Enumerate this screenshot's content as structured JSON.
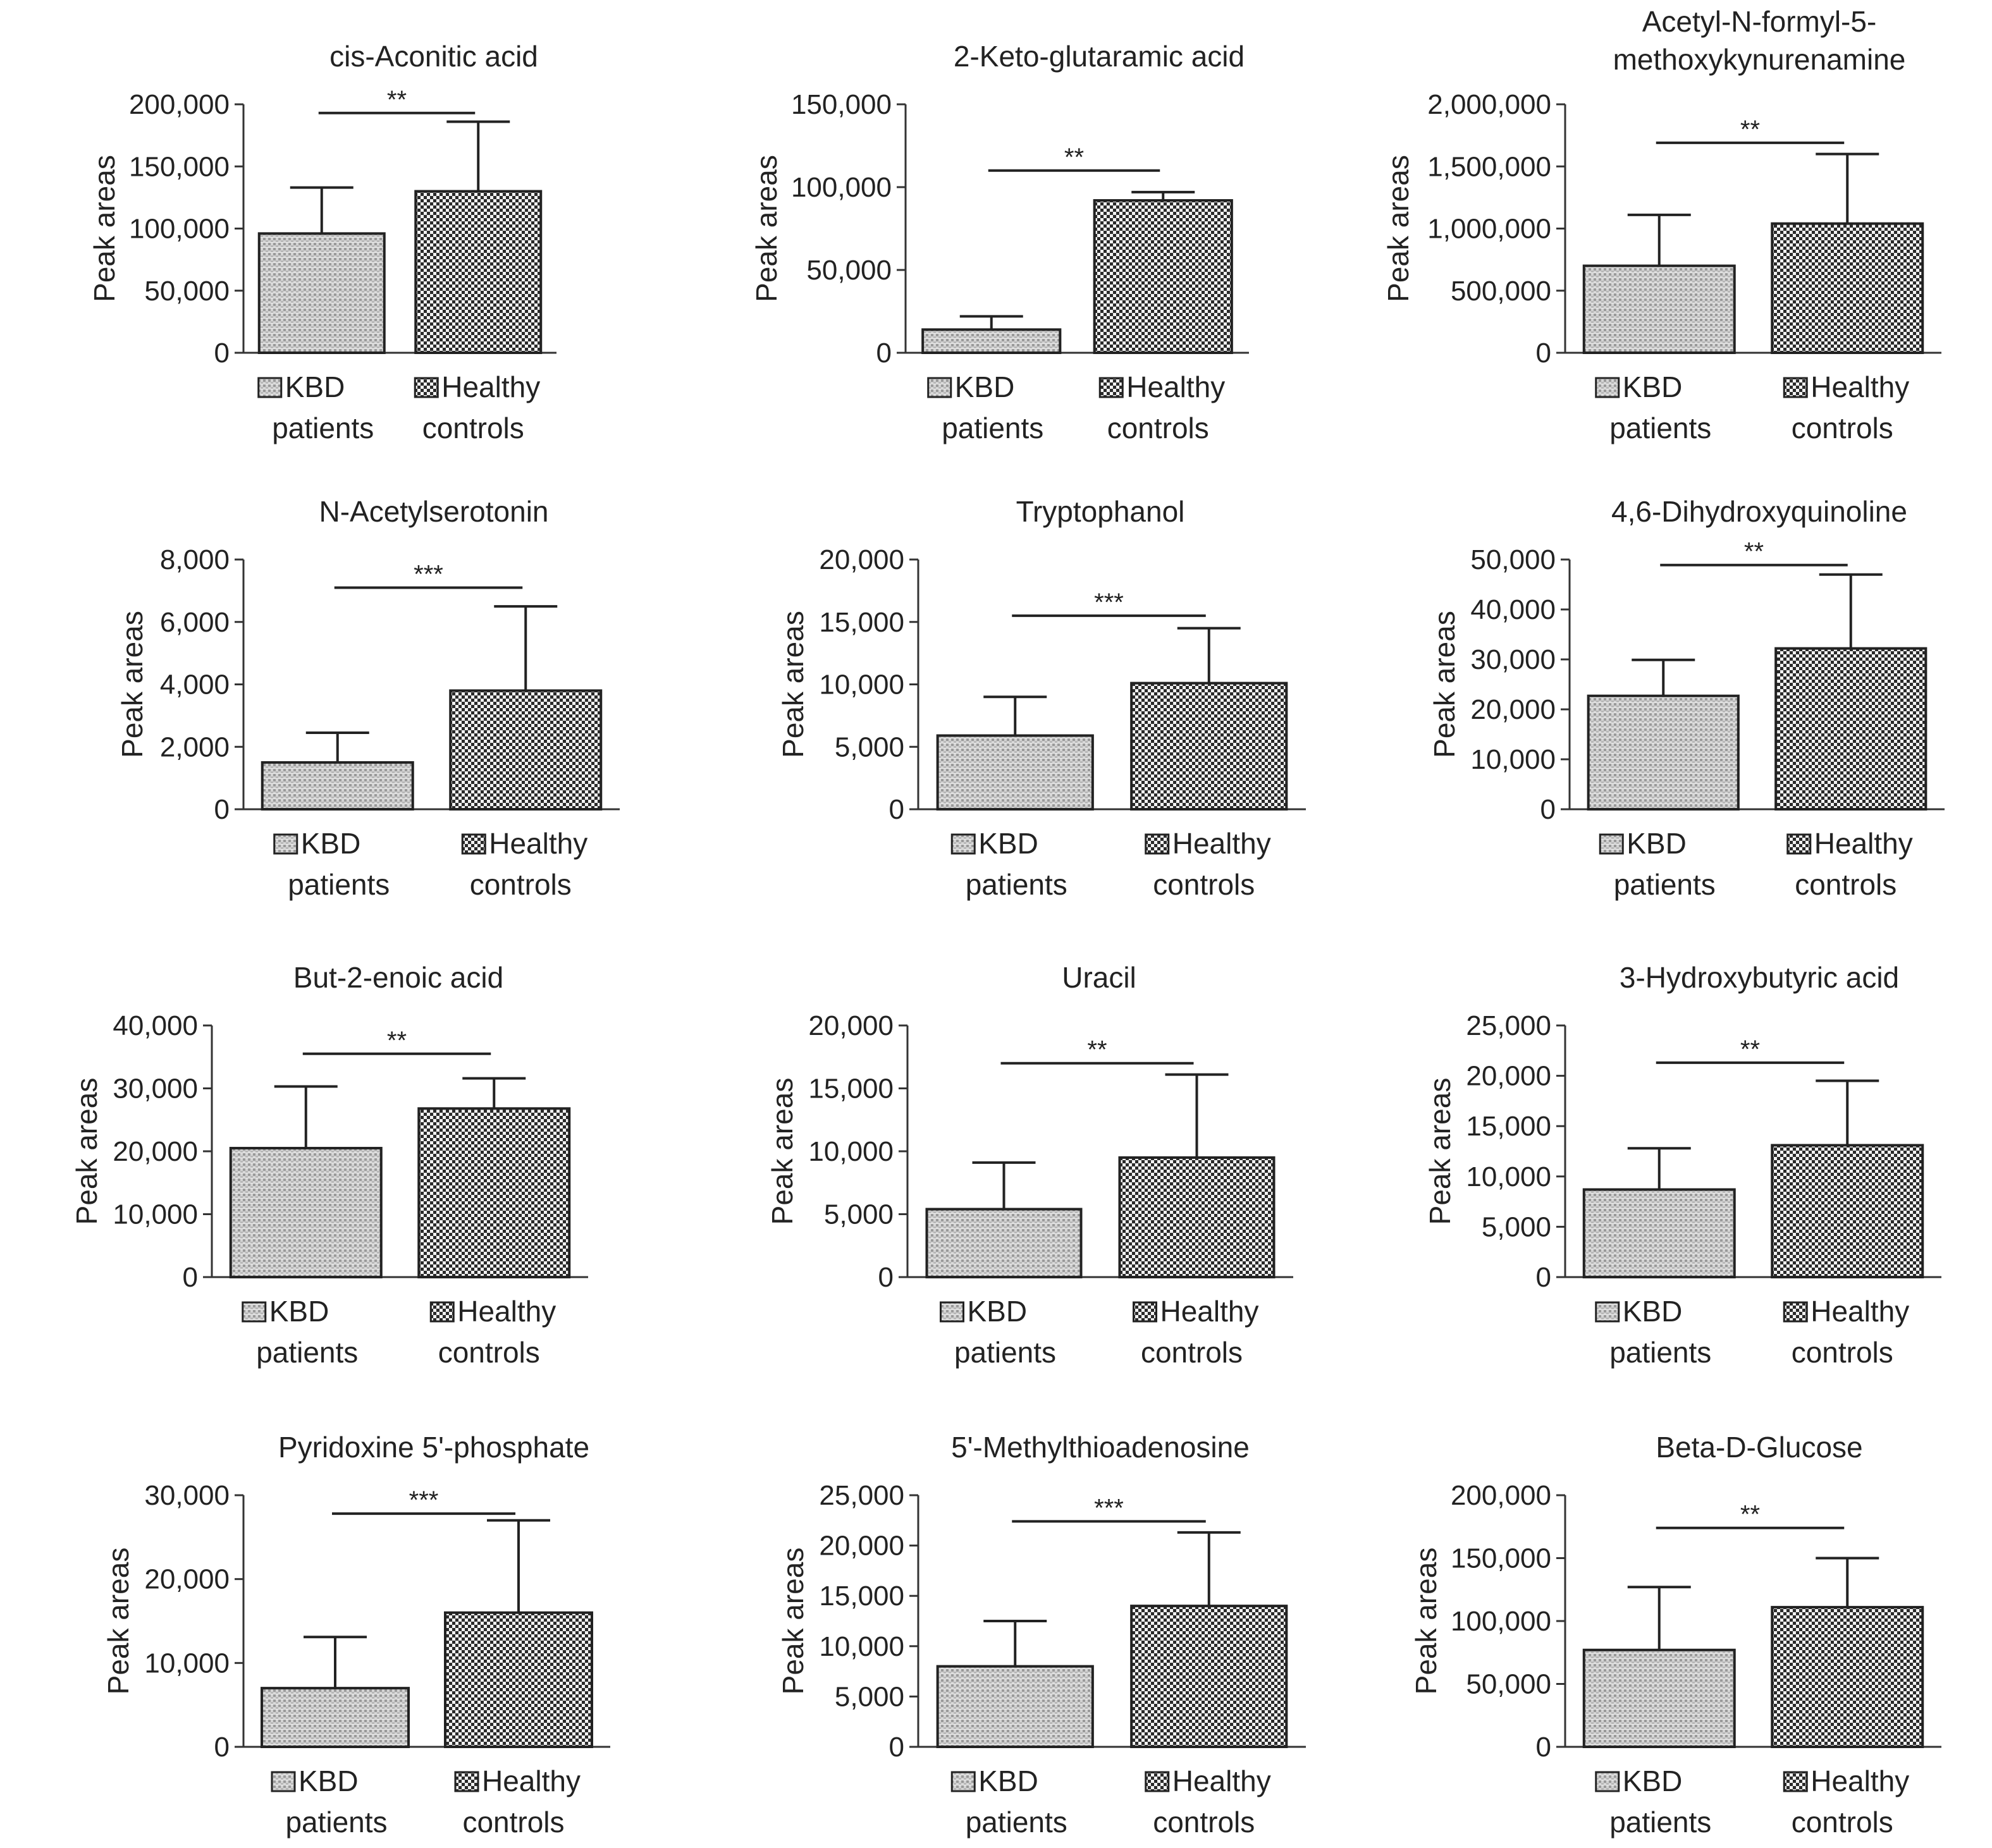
{
  "figure": {
    "ylabel": "Peak areas",
    "groups": [
      "KBD patients",
      "Healthy controls"
    ],
    "legend": [
      {
        "line1": "KBD",
        "line2": "patients"
      },
      {
        "line1": "Healthy",
        "line2": "controls"
      }
    ]
  },
  "chart_data": [
    {
      "type": "bar",
      "title_lines": [
        "cis-Aconitic acid"
      ],
      "ylabel": "Peak areas",
      "categories": [
        "KBD patients",
        "Healthy controls"
      ],
      "values": [
        96000,
        130000
      ],
      "errors": [
        37000,
        56000
      ],
      "ylim": [
        0,
        200000
      ],
      "yticks": [
        0,
        50000,
        100000,
        150000,
        200000
      ],
      "ytick_labels": [
        "0",
        "50,000",
        "100,000",
        "150,000",
        "200,000"
      ],
      "significance": "**",
      "sig_y": 193000
    },
    {
      "type": "bar",
      "title_lines": [
        "2-Keto-glutaramic acid"
      ],
      "ylabel": "Peak areas",
      "categories": [
        "KBD patients",
        "Healthy controls"
      ],
      "values": [
        14000,
        92000
      ],
      "errors": [
        8000,
        5000
      ],
      "ylim": [
        0,
        150000
      ],
      "yticks": [
        0,
        50000,
        100000,
        150000
      ],
      "ytick_labels": [
        "0",
        "50,000",
        "100,000",
        "150,000"
      ],
      "significance": "**",
      "sig_y": 110000
    },
    {
      "type": "bar",
      "title_lines": [
        "Acetyl-N-formyl-5-",
        "methoxykynurenamine"
      ],
      "ylabel": "Peak areas",
      "categories": [
        "KBD patients",
        "Healthy controls"
      ],
      "values": [
        700000,
        1040000
      ],
      "errors": [
        410000,
        560000
      ],
      "ylim": [
        0,
        2000000
      ],
      "yticks": [
        0,
        500000,
        1000000,
        1500000,
        2000000
      ],
      "ytick_labels": [
        "0",
        "500,000",
        "1,000,000",
        "1,500,000",
        "2,000,000"
      ],
      "significance": "**",
      "sig_y": 1690000
    },
    {
      "type": "bar",
      "title_lines": [
        "N-Acetylserotonin"
      ],
      "ylabel": "Peak areas",
      "categories": [
        "KBD patients",
        "Healthy controls"
      ],
      "values": [
        1500,
        3800
      ],
      "errors": [
        950,
        2700
      ],
      "ylim": [
        0,
        8000
      ],
      "yticks": [
        0,
        2000,
        4000,
        6000,
        8000
      ],
      "ytick_labels": [
        "0",
        "2,000",
        "4,000",
        "6,000",
        "8,000"
      ],
      "significance": "***",
      "sig_y": 7100
    },
    {
      "type": "bar",
      "title_lines": [
        "Tryptophanol"
      ],
      "ylabel": "Peak areas",
      "categories": [
        "KBD patients",
        "Healthy controls"
      ],
      "values": [
        5900,
        10100
      ],
      "errors": [
        3100,
        4400
      ],
      "ylim": [
        0,
        20000
      ],
      "yticks": [
        0,
        5000,
        10000,
        15000,
        20000
      ],
      "ytick_labels": [
        "0",
        "5,000",
        "10,000",
        "15,000",
        "20,000"
      ],
      "significance": "***",
      "sig_y": 15500
    },
    {
      "type": "bar",
      "title_lines": [
        "4,6-Dihydroxyquinoline"
      ],
      "ylabel": "Peak areas",
      "categories": [
        "KBD patients",
        "Healthy controls"
      ],
      "values": [
        22700,
        32200
      ],
      "errors": [
        7200,
        14800
      ],
      "ylim": [
        0,
        50000
      ],
      "yticks": [
        0,
        10000,
        20000,
        30000,
        40000,
        50000
      ],
      "ytick_labels": [
        "0",
        "10,000",
        "20,000",
        "30,000",
        "40,000",
        "50,000"
      ],
      "significance": "**",
      "sig_y": 48900
    },
    {
      "type": "bar",
      "title_lines": [
        "But-2-enoic acid"
      ],
      "ylabel": "Peak areas",
      "categories": [
        "KBD patients",
        "Healthy controls"
      ],
      "values": [
        20500,
        26800
      ],
      "errors": [
        9800,
        4800
      ],
      "ylim": [
        0,
        40000
      ],
      "yticks": [
        0,
        10000,
        20000,
        30000,
        40000
      ],
      "ytick_labels": [
        "0",
        "10,000",
        "20,000",
        "30,000",
        "40,000"
      ],
      "significance": "**",
      "sig_y": 35500
    },
    {
      "type": "bar",
      "title_lines": [
        "Uracil"
      ],
      "ylabel": "Peak areas",
      "categories": [
        "KBD patients",
        "Healthy controls"
      ],
      "values": [
        5400,
        9500
      ],
      "errors": [
        3700,
        6600
      ],
      "ylim": [
        0,
        20000
      ],
      "yticks": [
        0,
        5000,
        10000,
        15000,
        20000
      ],
      "ytick_labels": [
        "0",
        "5,000",
        "10,000",
        "15,000",
        "20,000"
      ],
      "significance": "**",
      "sig_y": 17000
    },
    {
      "type": "bar",
      "title_lines": [
        "3-Hydroxybutyric acid"
      ],
      "ylabel": "Peak areas",
      "categories": [
        "KBD patients",
        "Healthy controls"
      ],
      "values": [
        8700,
        13100
      ],
      "errors": [
        4100,
        6400
      ],
      "ylim": [
        0,
        25000
      ],
      "yticks": [
        0,
        5000,
        10000,
        15000,
        20000,
        25000
      ],
      "ytick_labels": [
        "0",
        "5,000",
        "10,000",
        "15,000",
        "20,000",
        "25,000"
      ],
      "significance": "**",
      "sig_y": 21300
    },
    {
      "type": "bar",
      "title_lines": [
        "Pyridoxine 5'-phosphate"
      ],
      "ylabel": "Peak areas",
      "categories": [
        "KBD patients",
        "Healthy controls"
      ],
      "values": [
        7000,
        16000
      ],
      "errors": [
        6100,
        11000
      ],
      "ylim": [
        0,
        30000
      ],
      "yticks": [
        0,
        10000,
        20000,
        30000
      ],
      "ytick_labels": [
        "0",
        "10,000",
        "20,000",
        "30,000"
      ],
      "significance": "***",
      "sig_y": 27800
    },
    {
      "type": "bar",
      "title_lines": [
        "5'-Methylthioadenosine"
      ],
      "ylabel": "Peak areas",
      "categories": [
        "KBD patients",
        "Healthy controls"
      ],
      "values": [
        8000,
        14000
      ],
      "errors": [
        4500,
        7300
      ],
      "ylim": [
        0,
        25000
      ],
      "yticks": [
        0,
        5000,
        10000,
        15000,
        20000,
        25000
      ],
      "ytick_labels": [
        "0",
        "5,000",
        "10,000",
        "15,000",
        "20,000",
        "25,000"
      ],
      "significance": "***",
      "sig_y": 22400
    },
    {
      "type": "bar",
      "title_lines": [
        "Beta-D-Glucose"
      ],
      "ylabel": "Peak areas",
      "categories": [
        "KBD patients",
        "Healthy controls"
      ],
      "values": [
        77000,
        111000
      ],
      "errors": [
        50000,
        39000
      ],
      "ylim": [
        0,
        200000
      ],
      "yticks": [
        0,
        50000,
        100000,
        150000,
        200000
      ],
      "ytick_labels": [
        "0",
        "50,000",
        "100,000",
        "150,000",
        "200,000"
      ],
      "significance": "**",
      "sig_y": 174000
    }
  ]
}
